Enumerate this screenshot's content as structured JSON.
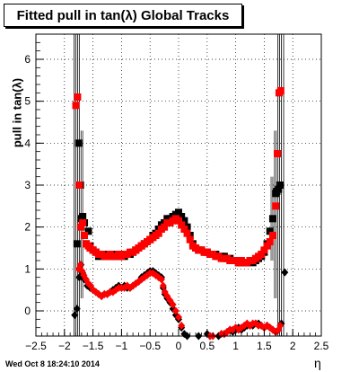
{
  "chart_data": {
    "type": "scatter",
    "title": "Fitted pull in tan(λ)  Global Tracks",
    "xlabel": "η",
    "ylabel": "pull in tan(λ)",
    "xlim": [
      -2.5,
      2.5
    ],
    "ylim": [
      -0.6,
      6.6
    ],
    "x_ticks": [
      -2.5,
      -2,
      -1.5,
      -1,
      -0.5,
      0,
      0.5,
      1,
      1.5,
      2,
      2.5
    ],
    "x_tick_labels": [
      "−2.5",
      "−2",
      "−1.5",
      "−1",
      "−0.5",
      "0",
      "0.5",
      "1",
      "1.5",
      "2",
      "2.5"
    ],
    "y_ticks": [
      0,
      1,
      2,
      3,
      4,
      5,
      6
    ],
    "y_tick_labels": [
      "0",
      "1",
      "2",
      "3",
      "4",
      "5",
      "6"
    ],
    "grid": true,
    "colors": {
      "black": "#000000",
      "red": "#ff0000"
    },
    "series": [
      {
        "marker": "square",
        "color": "#000000",
        "x": [
          -1.78,
          -1.75,
          -1.72,
          -1.7,
          -1.68,
          -1.65,
          -1.62,
          -1.58,
          -1.55,
          -1.5,
          -1.45,
          -1.4,
          -1.35,
          -1.3,
          -1.25,
          -1.2,
          -1.15,
          -1.1,
          -1.05,
          -1.0,
          -0.95,
          -0.9,
          -0.85,
          -0.8,
          -0.75,
          -0.7,
          -0.65,
          -0.6,
          -0.55,
          -0.5,
          -0.45,
          -0.4,
          -0.35,
          -0.3,
          -0.25,
          -0.2,
          -0.15,
          -0.1,
          -0.05,
          0.0,
          0.05,
          0.1,
          0.15,
          0.2,
          0.25,
          0.3,
          0.35,
          0.4,
          0.45,
          0.5,
          0.55,
          0.6,
          0.65,
          0.7,
          0.75,
          0.8,
          0.85,
          0.9,
          0.95,
          1.0,
          1.05,
          1.1,
          1.15,
          1.2,
          1.25,
          1.3,
          1.35,
          1.4,
          1.45,
          1.5,
          1.55,
          1.6,
          1.65,
          1.7,
          1.72,
          1.75,
          1.78
        ],
        "y": [
          1.6,
          4.0,
          3.0,
          2.2,
          2.25,
          2.1,
          1.6,
          1.9,
          1.55,
          1.45,
          1.4,
          1.3,
          1.35,
          1.3,
          1.35,
          1.3,
          1.35,
          1.3,
          1.3,
          1.35,
          1.3,
          1.35,
          1.35,
          1.4,
          1.45,
          1.5,
          1.55,
          1.6,
          1.65,
          1.7,
          1.8,
          1.85,
          1.95,
          2.05,
          2.1,
          2.2,
          2.2,
          2.25,
          2.3,
          2.35,
          2.25,
          2.15,
          2.0,
          1.8,
          1.6,
          1.5,
          1.45,
          1.45,
          1.4,
          1.4,
          1.35,
          1.35,
          1.35,
          1.3,
          1.3,
          1.3,
          1.25,
          1.25,
          1.2,
          1.2,
          1.15,
          1.15,
          1.15,
          1.15,
          1.2,
          1.15,
          1.2,
          1.25,
          1.3,
          1.4,
          1.6,
          1.9,
          2.2,
          2.8,
          2.85,
          2.9,
          3.0
        ]
      },
      {
        "marker": "square",
        "color": "#ff0000",
        "x": [
          -1.8,
          -1.77,
          -1.74,
          -1.71,
          -1.68,
          -1.65,
          -1.62,
          -1.58,
          -1.55,
          -1.5,
          -1.45,
          -1.4,
          -1.35,
          -1.3,
          -1.25,
          -1.2,
          -1.15,
          -1.1,
          -1.05,
          -1.0,
          -0.95,
          -0.9,
          -0.85,
          -0.8,
          -0.75,
          -0.7,
          -0.65,
          -0.6,
          -0.55,
          -0.5,
          -0.45,
          -0.4,
          -0.35,
          -0.3,
          -0.25,
          -0.2,
          -0.15,
          -0.1,
          -0.05,
          0.0,
          0.05,
          0.1,
          0.15,
          0.2,
          0.25,
          0.3,
          0.35,
          0.4,
          0.45,
          0.5,
          0.55,
          0.6,
          0.65,
          0.7,
          0.75,
          0.8,
          0.85,
          0.9,
          0.95,
          1.0,
          1.05,
          1.1,
          1.15,
          1.2,
          1.25,
          1.3,
          1.35,
          1.4,
          1.45,
          1.5,
          1.55,
          1.6,
          1.65,
          1.7,
          1.73,
          1.76,
          1.79
        ],
        "y": [
          4.9,
          5.1,
          3.0,
          2.0,
          2.1,
          1.8,
          1.6,
          1.55,
          1.5,
          1.45,
          1.4,
          1.35,
          1.35,
          1.3,
          1.3,
          1.35,
          1.3,
          1.3,
          1.35,
          1.3,
          1.35,
          1.35,
          1.4,
          1.4,
          1.45,
          1.5,
          1.55,
          1.6,
          1.65,
          1.7,
          1.75,
          1.8,
          1.85,
          1.95,
          2.0,
          2.1,
          2.1,
          2.15,
          2.2,
          2.15,
          2.05,
          1.95,
          1.85,
          1.7,
          1.55,
          1.5,
          1.45,
          1.45,
          1.4,
          1.4,
          1.35,
          1.35,
          1.3,
          1.3,
          1.25,
          1.25,
          1.25,
          1.2,
          1.2,
          1.2,
          1.15,
          1.2,
          1.15,
          1.15,
          1.2,
          1.2,
          1.25,
          1.3,
          1.35,
          1.45,
          1.55,
          1.65,
          1.8,
          2.5,
          3.75,
          5.2,
          5.25
        ]
      },
      {
        "marker": "diamond",
        "color": "#000000",
        "x": [
          -1.82,
          -1.78,
          -1.74,
          -1.71,
          -1.68,
          -1.65,
          -1.6,
          -1.55,
          -1.5,
          -1.45,
          -1.4,
          -1.35,
          -1.3,
          -1.25,
          -1.2,
          -1.15,
          -1.1,
          -1.05,
          -1.0,
          -0.95,
          -0.9,
          -0.85,
          -0.8,
          -0.75,
          -0.7,
          -0.65,
          -0.6,
          -0.55,
          -0.5,
          -0.45,
          -0.4,
          -0.35,
          -0.3,
          -0.27,
          -0.24,
          -0.2,
          -0.15,
          -0.1,
          -0.05,
          0.0,
          0.05,
          0.1,
          0.15,
          0.35,
          0.5,
          0.55,
          0.7,
          0.75,
          0.8,
          0.85,
          0.9,
          0.95,
          1.0,
          1.05,
          1.1,
          1.15,
          1.2,
          1.25,
          1.3,
          1.35,
          1.4,
          1.45,
          1.5,
          1.55,
          1.6,
          1.65,
          1.7,
          1.75,
          1.8,
          1.86
        ],
        "y": [
          -0.1,
          0.05,
          0.8,
          1.1,
          0.9,
          0.75,
          0.6,
          0.55,
          0.5,
          0.45,
          0.4,
          0.35,
          0.4,
          0.4,
          0.45,
          0.5,
          0.55,
          0.6,
          0.55,
          0.6,
          0.55,
          0.55,
          0.6,
          0.65,
          0.7,
          0.8,
          0.85,
          0.9,
          0.95,
          0.95,
          0.9,
          0.85,
          0.8,
          0.55,
          0.4,
          0.3,
          0.2,
          0.05,
          -0.1,
          -0.2,
          -0.4,
          -0.55,
          -0.6,
          -0.6,
          -0.55,
          -0.6,
          -0.6,
          -0.55,
          -0.55,
          -0.5,
          -0.45,
          -0.5,
          -0.45,
          -0.4,
          -0.45,
          -0.4,
          -0.35,
          -0.35,
          -0.35,
          -0.3,
          -0.3,
          -0.35,
          -0.4,
          -0.35,
          -0.4,
          -0.45,
          -0.5,
          -0.45,
          -0.3,
          0.92
        ]
      },
      {
        "marker": "diamond",
        "color": "#ff0000",
        "x": [
          -1.75,
          -1.72,
          -1.69,
          -1.66,
          -1.62,
          -1.58,
          -1.54,
          -1.5,
          -1.45,
          -1.4,
          -1.35,
          -1.3,
          -1.25,
          -1.2,
          -1.15,
          -1.1,
          -1.05,
          -1.0,
          -0.95,
          -0.9,
          -0.85,
          -0.8,
          -0.75,
          -0.7,
          -0.65,
          -0.6,
          -0.55,
          -0.5,
          -0.45,
          -0.4,
          -0.35,
          -0.3,
          -0.27,
          -0.24,
          -0.2,
          -0.15,
          -0.1,
          -0.05,
          0.0,
          0.05,
          0.55,
          0.6,
          0.75,
          0.8,
          0.85,
          0.9,
          0.95,
          1.0,
          1.05,
          1.1,
          1.15,
          1.2,
          1.25,
          1.3,
          1.35,
          1.4,
          1.45,
          1.5,
          1.55,
          1.6,
          1.65,
          1.7,
          1.75,
          1.78
        ],
        "y": [
          1.0,
          1.1,
          0.95,
          0.85,
          0.75,
          0.65,
          0.6,
          0.5,
          0.45,
          0.4,
          0.35,
          0.4,
          0.4,
          0.45,
          0.45,
          0.5,
          0.55,
          0.55,
          0.55,
          0.6,
          0.55,
          0.6,
          0.65,
          0.7,
          0.75,
          0.8,
          0.85,
          0.9,
          0.9,
          0.85,
          0.8,
          0.75,
          0.6,
          0.45,
          0.35,
          0.25,
          0.15,
          0.0,
          -0.15,
          -0.35,
          -0.6,
          -0.6,
          -0.55,
          -0.55,
          -0.5,
          -0.45,
          -0.45,
          -0.4,
          -0.45,
          -0.4,
          -0.35,
          -0.3,
          -0.35,
          -0.3,
          -0.3,
          -0.35,
          -0.35,
          -0.4,
          -0.35,
          -0.4,
          -0.45,
          -0.5,
          -0.45,
          -0.35
        ]
      }
    ]
  },
  "footer": {
    "datestamp": "Wed Oct  8 18:24:10 2014"
  }
}
